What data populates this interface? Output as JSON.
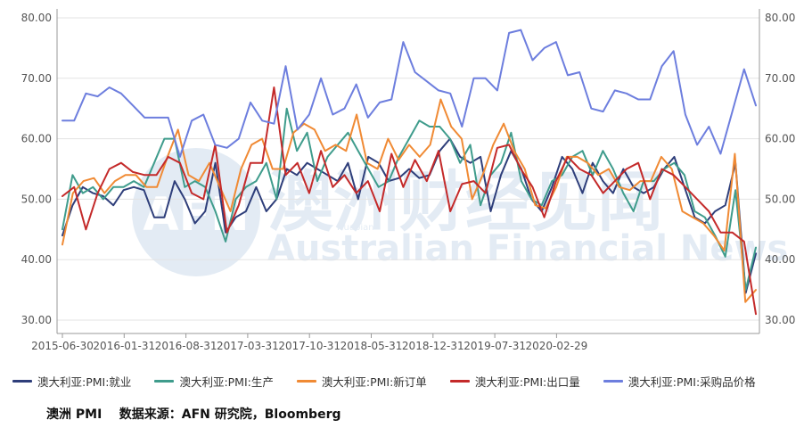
{
  "chart_data": {
    "type": "line",
    "title": "",
    "xlabel": "",
    "ylabel": "",
    "ylim": [
      28,
      82
    ],
    "y_ticks": [
      "80.00",
      "70.00",
      "60.00",
      "50.00",
      "40.00",
      "30.00"
    ],
    "y_tick_values": [
      80,
      70,
      60,
      50,
      40,
      30
    ],
    "dual_y_axis": true,
    "x_tick_labels": [
      "2015-06-30",
      "2016-01-31",
      "2016-08-31",
      "2017-03-31",
      "2017-10-31",
      "2018-05-31",
      "2018-12-31",
      "2019-07-31",
      "2020-02-29"
    ],
    "grid": "horizontal",
    "legend_position": "bottom",
    "x_start": "2015-06",
    "x_end": "2020-06",
    "series": [
      {
        "name": "澳大利亚:PMI:就业",
        "color": "#2e3e7a",
        "values": [
          44.0,
          49.0,
          52.0,
          51.0,
          50.5,
          49.0,
          51.5,
          52.0,
          51.5,
          47.0,
          47.0,
          53.0,
          50.0,
          46.0,
          48.0,
          56.0,
          44.5,
          47.0,
          48.0,
          52.0,
          48.0,
          50.0,
          55.0,
          54.0,
          56.0,
          55.0,
          54.0,
          53.0,
          56.0,
          50.0,
          57.0,
          56.0,
          53.0,
          53.5,
          55.0,
          53.5,
          54.0,
          58.0,
          60.0,
          57.0,
          56.0,
          57.0,
          48.0,
          54.0,
          58.0,
          55.0,
          50.0,
          48.0,
          52.0,
          57.0,
          55.0,
          51.0,
          56.0,
          53.0,
          51.0,
          55.0,
          52.0,
          51.0,
          52.0,
          55.0,
          57.0,
          52.0,
          47.0,
          46.0,
          48.0,
          49.0,
          56.0,
          34.5,
          41.0
        ]
      },
      {
        "name": "澳大利亚:PMI:生产",
        "color": "#3f9c8c",
        "values": [
          45.0,
          54.0,
          51.0,
          52.0,
          50.0,
          52.0,
          52.0,
          53.0,
          52.0,
          56.0,
          60.0,
          60.0,
          52.0,
          53.0,
          52.0,
          48.0,
          43.0,
          50.0,
          52.0,
          53.0,
          56.0,
          50.0,
          65.0,
          58.0,
          61.0,
          53.0,
          57.0,
          59.0,
          61.0,
          58.0,
          55.0,
          52.0,
          53.0,
          57.0,
          60.0,
          63.0,
          62.0,
          62.0,
          60.0,
          56.0,
          59.0,
          49.0,
          54.0,
          56.0,
          61.0,
          53.0,
          50.0,
          49.0,
          53.0,
          54.0,
          57.0,
          58.0,
          54.0,
          58.0,
          55.0,
          51.0,
          48.0,
          53.0,
          53.0,
          55.0,
          56.0,
          54.0,
          48.0,
          47.0,
          44.0,
          40.5,
          51.5,
          35.0,
          42.0
        ]
      },
      {
        "name": "澳大利亚:PMI:新订单",
        "color": "#f08a34",
        "values": [
          42.5,
          51.0,
          53.0,
          53.5,
          51.0,
          53.0,
          54.0,
          54.0,
          52.0,
          52.0,
          57.0,
          61.5,
          54.0,
          53.0,
          56.0,
          52.0,
          48.0,
          55.0,
          59.0,
          60.0,
          55.0,
          55.0,
          61.0,
          62.5,
          61.5,
          58.0,
          59.0,
          58.0,
          64.0,
          56.0,
          55.0,
          60.0,
          56.5,
          59.0,
          57.0,
          59.0,
          66.5,
          62.0,
          60.0,
          50.0,
          54.0,
          59.0,
          62.5,
          58.0,
          55.0,
          49.0,
          48.5,
          52.0,
          57.0,
          57.0,
          56.0,
          54.0,
          55.0,
          52.0,
          51.5,
          53.0,
          53.0,
          57.0,
          55.0,
          48.0,
          47.0,
          46.0,
          44.0,
          41.5,
          57.5,
          33.0,
          35.0
        ]
      },
      {
        "name": "澳大利亚:PMI:出口量",
        "color": "#c42a2a",
        "values": [
          50.5,
          52.0,
          45.0,
          51.0,
          55.0,
          56.0,
          54.5,
          54.0,
          54.0,
          57.0,
          56.0,
          51.0,
          50.0,
          59.0,
          44.5,
          49.0,
          56.0,
          56.0,
          68.5,
          54.0,
          56.0,
          51.0,
          58.0,
          52.0,
          54.0,
          51.0,
          53.0,
          48.0,
          57.5,
          52.0,
          56.5,
          53.0,
          58.0,
          48.0,
          52.5,
          53.0,
          51.0,
          58.5,
          59.0,
          55.0,
          52.0,
          47.0,
          53.0,
          57.0,
          55.0,
          54.0,
          51.0,
          53.0,
          55.0,
          56.0,
          50.0,
          55.0,
          54.0,
          52.0,
          50.0,
          48.0,
          44.5,
          44.5,
          43.0,
          31.0
        ]
      },
      {
        "name": "澳大利亚:PMI:采购品价格",
        "color": "#6d7ede",
        "values": [
          63.0,
          63.0,
          67.5,
          67.0,
          68.5,
          67.5,
          65.5,
          63.5,
          63.5,
          63.5,
          57.0,
          63.0,
          64.0,
          59.0,
          58.5,
          60.0,
          66.0,
          63.0,
          62.5,
          72.0,
          61.5,
          64.0,
          70.0,
          64.0,
          65.0,
          69.0,
          63.5,
          66.0,
          66.5,
          76.0,
          71.0,
          69.5,
          68.0,
          67.5,
          62.0,
          70.0,
          70.0,
          68.0,
          77.5,
          78.0,
          73.0,
          75.0,
          76.0,
          70.5,
          71.0,
          65.0,
          64.5,
          68.0,
          67.5,
          66.5,
          66.5,
          72.0,
          74.5,
          64.0,
          59.0,
          62.0,
          57.5,
          64.5,
          71.5,
          65.5
        ]
      }
    ]
  },
  "watermark": {
    "logo": "AFN",
    "cn": "澳洲财经见闻",
    "en": "Australian Financial News",
    "small": "Huabian"
  },
  "caption": "澳洲 PMI    数据来源：AFN 研究院，Bloomberg"
}
